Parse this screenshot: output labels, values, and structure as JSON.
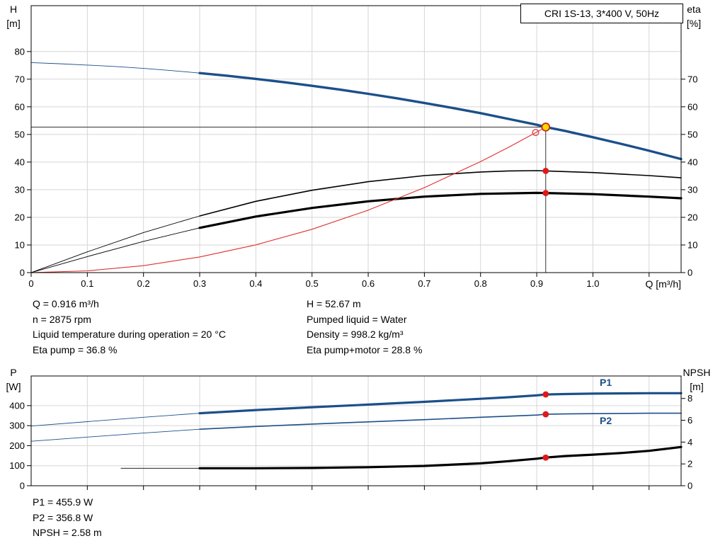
{
  "title": "CRI 1S-13, 3*400 V, 50Hz",
  "info": {
    "left": [
      "Q = 0.916 m³/h",
      "n = 2875 rpm",
      "Liquid temperature during operation = 20 °C",
      "Eta pump = 36.8 %"
    ],
    "right": [
      "H = 52.67 m",
      "Pumped liquid = Water",
      "Density = 998.2 kg/m³",
      "Eta pump+motor = 28.8 %"
    ],
    "power": [
      "P1 = 455.9 W",
      "P2 = 356.8 W",
      "NPSH = 2.58 m"
    ]
  },
  "colors": {
    "pump_curve_blue": "#1c4f8a",
    "system_curve_red": "#e03030",
    "marker_red": "#e01818",
    "duty_fill_yellow": "#ffd700",
    "duty_ring": "#c03018",
    "grid": "#d6d6d6"
  },
  "chart_data": [
    {
      "id": "qh-eta-chart",
      "type": "line",
      "x": {
        "min": 0,
        "max": 1.157,
        "label": "Q [m³/h]",
        "show_labels": true,
        "ticks": [
          [
            0,
            "0"
          ],
          [
            0.1,
            "0.1"
          ],
          [
            0.2,
            "0.2"
          ],
          [
            0.3,
            "0.3"
          ],
          [
            0.4,
            "0.4"
          ],
          [
            0.5,
            "0.5"
          ],
          [
            0.6,
            "0.6"
          ],
          [
            0.7,
            "0.7"
          ],
          [
            0.8,
            "0.8"
          ],
          [
            0.9,
            "0.9"
          ],
          [
            1,
            "1.0"
          ],
          [
            1.1,
            ""
          ]
        ]
      },
      "y_left": {
        "min": 0,
        "max": 96.6,
        "label": [
          "H",
          "[m]"
        ],
        "ticks": [
          [
            0,
            "0"
          ],
          [
            10,
            "10"
          ],
          [
            20,
            "20"
          ],
          [
            30,
            "30"
          ],
          [
            40,
            "40"
          ],
          [
            50,
            "50"
          ],
          [
            60,
            "60"
          ],
          [
            70,
            "70"
          ],
          [
            80,
            "80"
          ]
        ]
      },
      "y_right": {
        "min": 0,
        "max": 96.6,
        "label": [
          "eta",
          "[%]"
        ],
        "ticks": [
          [
            0,
            "0"
          ],
          [
            10,
            "10"
          ],
          [
            20,
            "20"
          ],
          [
            30,
            "30"
          ],
          [
            40,
            "40"
          ],
          [
            50,
            "50"
          ],
          [
            60,
            "60"
          ],
          [
            70,
            "70"
          ]
        ]
      },
      "crosshair": {
        "q": 0.916,
        "v": 52.67
      },
      "series": [
        {
          "name": "head-curve-lead",
          "axis": "left",
          "color": "#1c4f8a",
          "width": 0.9,
          "points": [
            [
              0,
              76
            ],
            [
              0.05,
              75.6
            ],
            [
              0.1,
              75.1
            ],
            [
              0.15,
              74.6
            ],
            [
              0.2,
              73.9
            ],
            [
              0.25,
              73.1
            ],
            [
              0.3,
              72.2
            ]
          ]
        },
        {
          "name": "head-curve",
          "label": "H",
          "axis": "left",
          "color": "#1c4f8a",
          "width": 3.4,
          "points": [
            [
              0.3,
              72.2
            ],
            [
              0.35,
              71.2
            ],
            [
              0.4,
              70.1
            ],
            [
              0.45,
              68.9
            ],
            [
              0.5,
              67.6
            ],
            [
              0.55,
              66.2
            ],
            [
              0.6,
              64.7
            ],
            [
              0.65,
              63.1
            ],
            [
              0.7,
              61.4
            ],
            [
              0.75,
              59.6
            ],
            [
              0.8,
              57.7
            ],
            [
              0.85,
              55.6
            ],
            [
              0.9,
              53.5
            ],
            [
              0.916,
              52.67
            ],
            [
              0.95,
              51.3
            ],
            [
              1,
              49
            ],
            [
              1.05,
              46.6
            ],
            [
              1.1,
              44.1
            ],
            [
              1.157,
              41.1
            ]
          ]
        },
        {
          "name": "eta-pump-lead",
          "axis": "left",
          "color": "#000000",
          "width": 0.9,
          "points": [
            [
              0,
              0
            ],
            [
              0.1,
              7.5
            ],
            [
              0.2,
              14.5
            ],
            [
              0.3,
              20.5
            ]
          ]
        },
        {
          "name": "eta-pump-curve",
          "label": "eta pump",
          "axis": "left",
          "color": "#000000",
          "width": 1.6,
          "points": [
            [
              0.3,
              20.5
            ],
            [
              0.4,
              25.8
            ],
            [
              0.5,
              29.8
            ],
            [
              0.6,
              32.9
            ],
            [
              0.7,
              35.1
            ],
            [
              0.8,
              36.4
            ],
            [
              0.85,
              36.8
            ],
            [
              0.9,
              36.9
            ],
            [
              0.916,
              36.8
            ],
            [
              1,
              36.2
            ],
            [
              1.1,
              35.1
            ],
            [
              1.157,
              34.3
            ]
          ]
        },
        {
          "name": "eta-pump-motor-lead",
          "axis": "left",
          "color": "#000000",
          "width": 0.9,
          "points": [
            [
              0,
              0
            ],
            [
              0.1,
              5.8
            ],
            [
              0.2,
              11.3
            ],
            [
              0.3,
              16.2
            ]
          ]
        },
        {
          "name": "eta-pump-motor-curve",
          "label": "eta pump+motor",
          "axis": "left",
          "color": "#000000",
          "width": 3.2,
          "points": [
            [
              0.3,
              16.2
            ],
            [
              0.4,
              20.3
            ],
            [
              0.5,
              23.4
            ],
            [
              0.6,
              25.8
            ],
            [
              0.7,
              27.5
            ],
            [
              0.8,
              28.5
            ],
            [
              0.9,
              28.85
            ],
            [
              0.916,
              28.8
            ],
            [
              1,
              28.4
            ],
            [
              1.1,
              27.5
            ],
            [
              1.157,
              26.9
            ]
          ]
        },
        {
          "name": "system-curve",
          "axis": "left",
          "color": "#e03030",
          "width": 1.1,
          "points": [
            [
              0,
              0
            ],
            [
              0.1,
              0.63
            ],
            [
              0.2,
              2.51
            ],
            [
              0.3,
              5.65
            ],
            [
              0.4,
              10.04
            ],
            [
              0.5,
              15.69
            ],
            [
              0.6,
              22.6
            ],
            [
              0.7,
              30.76
            ],
            [
              0.8,
              40.17
            ],
            [
              0.85,
              45.35
            ],
            [
              0.9,
              50.85
            ],
            [
              0.916,
              52.67
            ]
          ]
        }
      ],
      "markers": [
        {
          "name": "requested-duty-circle",
          "axis": "left",
          "q": 0.898,
          "v": 50.7,
          "r": 4.3,
          "stroke": "#e04545",
          "sw": 1.4
        },
        {
          "name": "duty-point",
          "axis": "left",
          "q": 0.916,
          "v": 52.67,
          "r": 5.4,
          "fill": "#ffd700",
          "stroke": "#c03018",
          "sw": 1.8
        },
        {
          "name": "eta-pump-duty-dot",
          "axis": "left",
          "q": 0.916,
          "v": 36.8,
          "r": 4.4,
          "fill": "#e01818"
        },
        {
          "name": "eta-pump-motor-duty-dot",
          "axis": "left",
          "q": 0.916,
          "v": 28.8,
          "r": 4.4,
          "fill": "#e01818"
        }
      ]
    },
    {
      "id": "power-npsh-chart",
      "type": "line",
      "x": {
        "min": 0,
        "max": 1.157,
        "label": "",
        "show_labels": false,
        "ticks": [
          [
            0.1,
            ""
          ],
          [
            0.2,
            ""
          ],
          [
            0.3,
            ""
          ],
          [
            0.4,
            ""
          ],
          [
            0.5,
            ""
          ],
          [
            0.6,
            ""
          ],
          [
            0.7,
            ""
          ],
          [
            0.8,
            ""
          ],
          [
            0.9,
            ""
          ],
          [
            1,
            ""
          ],
          [
            1.1,
            ""
          ]
        ]
      },
      "y_left": {
        "min": 0,
        "max": 548,
        "label": [
          "P",
          "[W]"
        ],
        "ticks": [
          [
            0,
            "0"
          ],
          [
            100,
            "100"
          ],
          [
            200,
            "200"
          ],
          [
            300,
            "300"
          ],
          [
            400,
            "400"
          ]
        ]
      },
      "y_right": {
        "min": 0,
        "max": 10.06,
        "label": [
          "NPSH",
          "[m]"
        ],
        "ticks": [
          [
            0,
            "0"
          ],
          [
            2,
            "2"
          ],
          [
            4,
            "4"
          ],
          [
            6,
            "6"
          ],
          [
            8,
            "8"
          ]
        ]
      },
      "series": [
        {
          "name": "p1-curve-lead",
          "axis": "left",
          "color": "#1c4f8a",
          "width": 0.9,
          "points": [
            [
              0,
              298
            ],
            [
              0.1,
              320
            ],
            [
              0.2,
              342
            ],
            [
              0.3,
              362
            ]
          ]
        },
        {
          "name": "p1-curve",
          "label": "P1",
          "axis": "left",
          "color": "#1c4f8a",
          "width": 3.2,
          "points": [
            [
              0.3,
              362
            ],
            [
              0.4,
              378
            ],
            [
              0.5,
              392
            ],
            [
              0.6,
              405
            ],
            [
              0.7,
              419
            ],
            [
              0.8,
              434
            ],
            [
              0.85,
              442
            ],
            [
              0.9,
              451
            ],
            [
              0.916,
              455.9
            ],
            [
              0.95,
              458
            ],
            [
              1,
              460
            ],
            [
              1.1,
              462
            ],
            [
              1.157,
              462
            ]
          ]
        },
        {
          "name": "p2-curve-lead",
          "axis": "left",
          "color": "#1c4f8a",
          "width": 0.9,
          "points": [
            [
              0,
              222
            ],
            [
              0.1,
              243
            ],
            [
              0.2,
              263
            ],
            [
              0.3,
              282
            ]
          ]
        },
        {
          "name": "p2-curve",
          "label": "P2",
          "axis": "left",
          "color": "#1c4f8a",
          "width": 1.6,
          "points": [
            [
              0.3,
              282
            ],
            [
              0.4,
              296
            ],
            [
              0.5,
              308
            ],
            [
              0.6,
              319
            ],
            [
              0.7,
              330
            ],
            [
              0.8,
              342
            ],
            [
              0.9,
              353
            ],
            [
              0.916,
              356.8
            ],
            [
              0.95,
              358.5
            ],
            [
              1,
              360
            ],
            [
              1.1,
              362
            ],
            [
              1.157,
              362
            ]
          ]
        },
        {
          "name": "npsh-curve-lead",
          "axis": "right",
          "color": "#000000",
          "width": 0.9,
          "points": [
            [
              0.16,
              1.6
            ],
            [
              0.3,
              1.6
            ]
          ]
        },
        {
          "name": "npsh-curve",
          "label": "NPSH",
          "axis": "right",
          "color": "#000000",
          "width": 3.2,
          "points": [
            [
              0.3,
              1.6
            ],
            [
              0.4,
              1.6
            ],
            [
              0.5,
              1.63
            ],
            [
              0.6,
              1.7
            ],
            [
              0.7,
              1.82
            ],
            [
              0.8,
              2.05
            ],
            [
              0.85,
              2.25
            ],
            [
              0.9,
              2.48
            ],
            [
              0.916,
              2.58
            ],
            [
              0.95,
              2.72
            ],
            [
              1,
              2.85
            ],
            [
              1.05,
              3
            ],
            [
              1.1,
              3.2
            ],
            [
              1.157,
              3.55
            ]
          ]
        }
      ],
      "markers": [
        {
          "name": "p1-duty-dot",
          "axis": "left",
          "q": 0.916,
          "v": 455.9,
          "r": 4.4,
          "fill": "#e01818"
        },
        {
          "name": "p2-duty-dot",
          "axis": "left",
          "q": 0.916,
          "v": 356.8,
          "r": 4.4,
          "fill": "#e01818"
        },
        {
          "name": "npsh-duty-dot",
          "axis": "right",
          "q": 0.916,
          "v": 2.58,
          "r": 4.4,
          "fill": "#e01818"
        }
      ]
    }
  ]
}
